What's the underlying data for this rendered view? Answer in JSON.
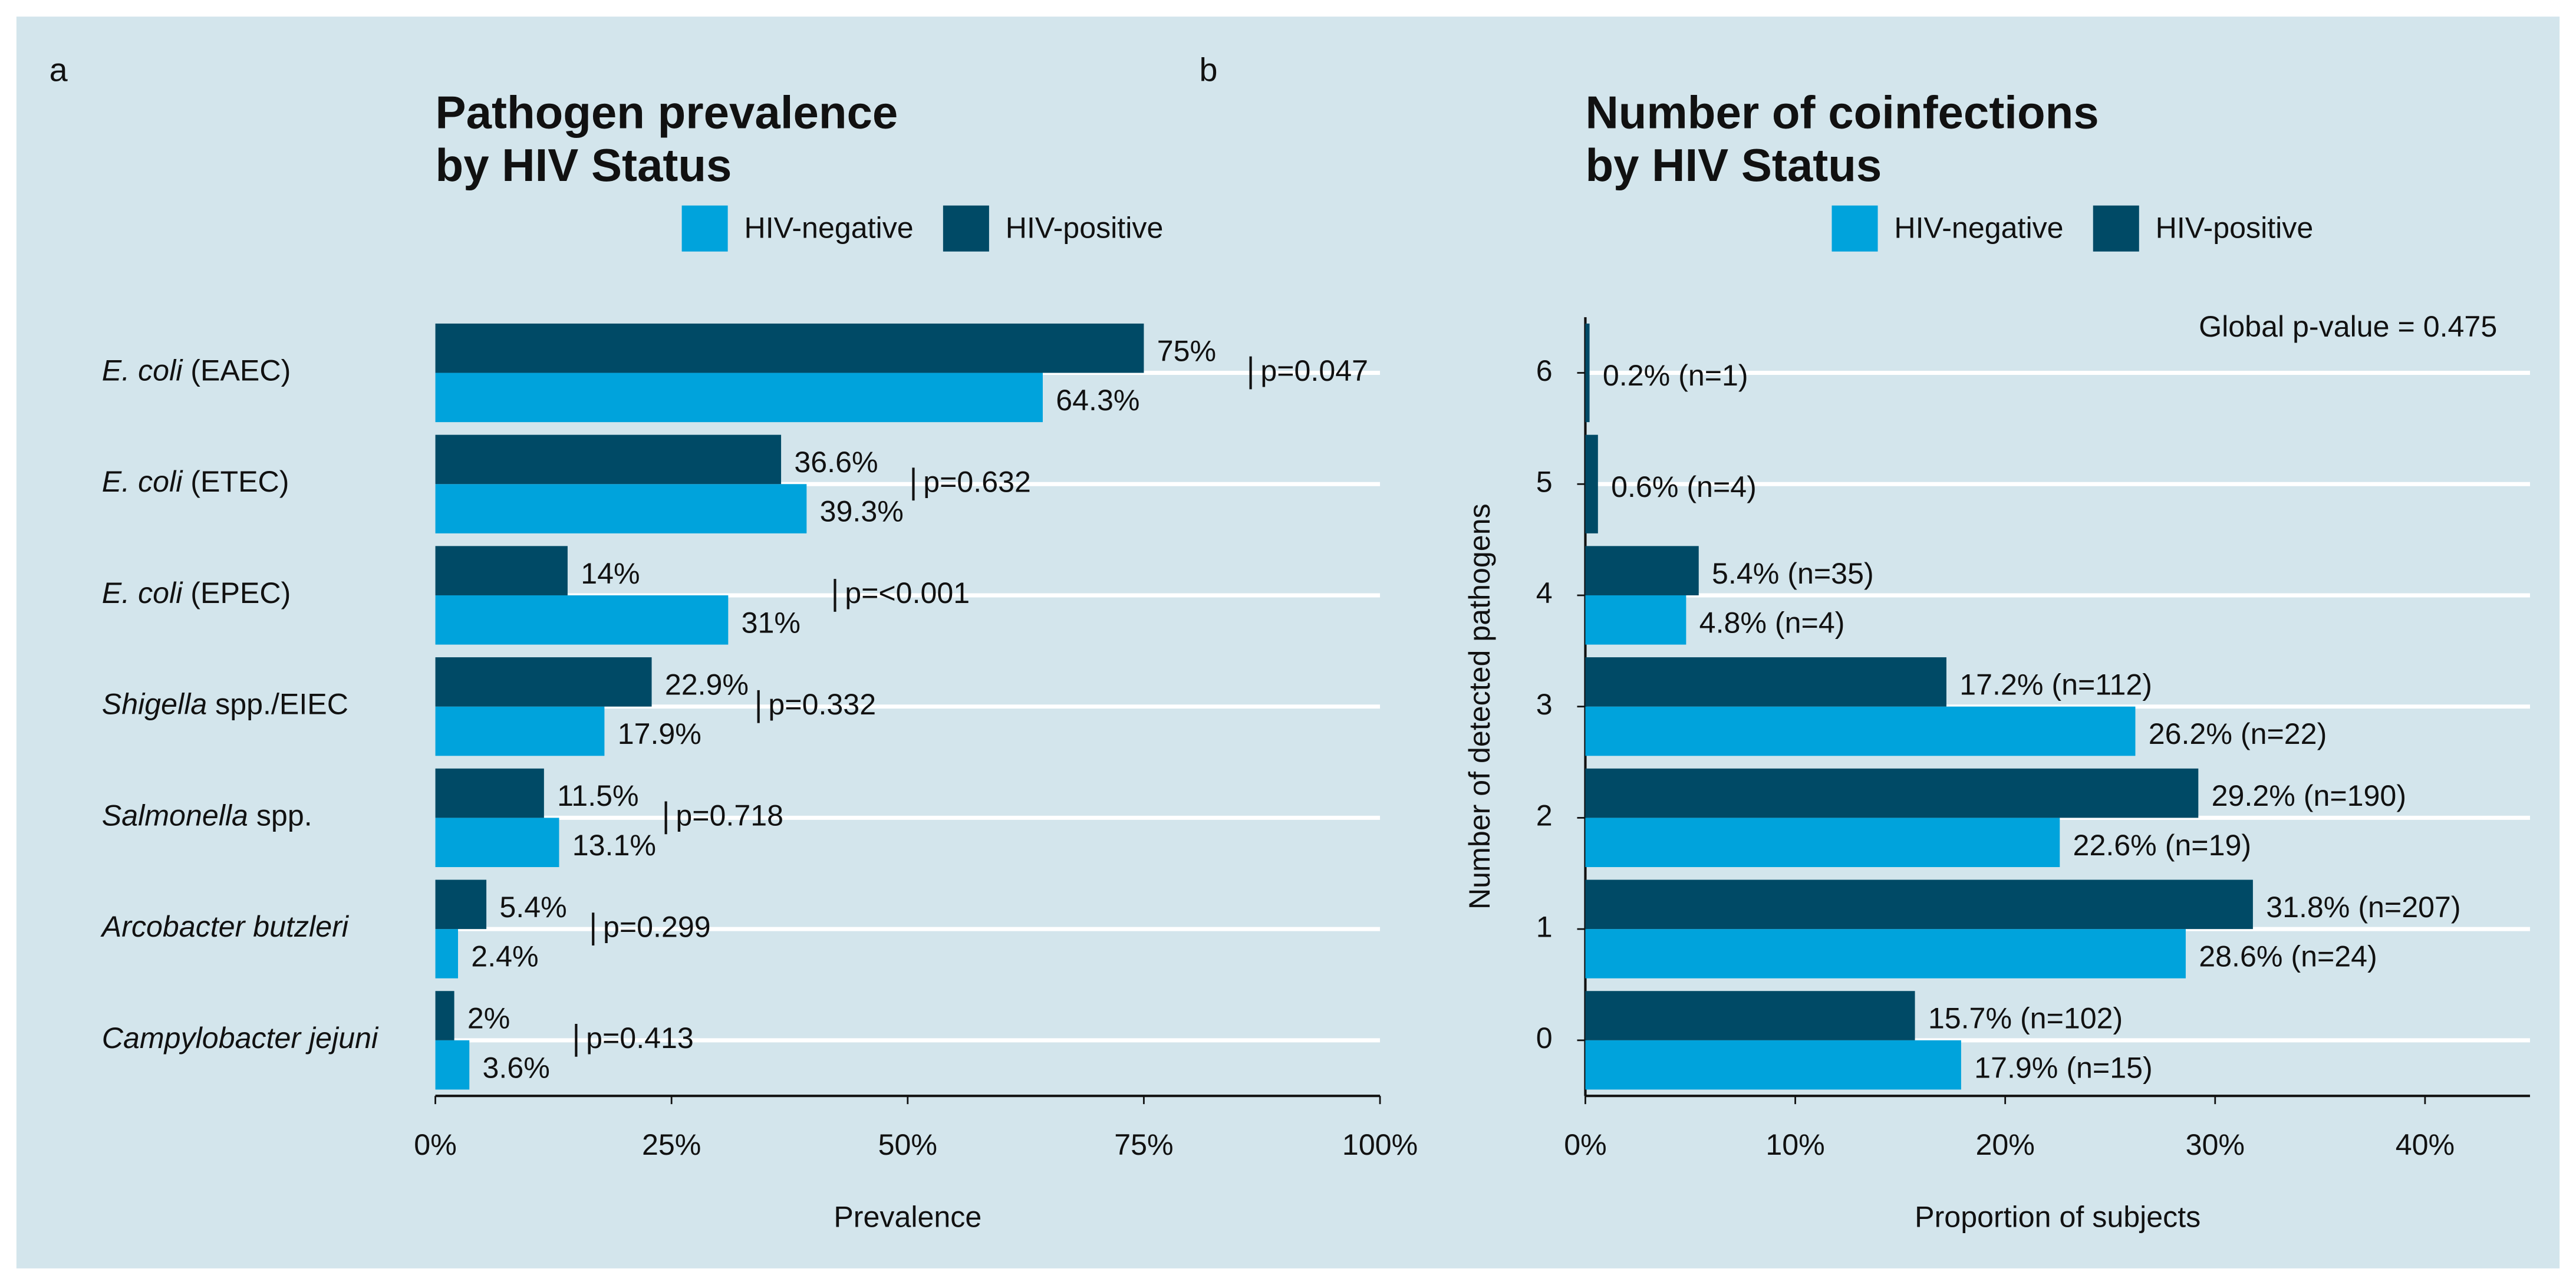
{
  "chart_data": [
    {
      "type": "bar",
      "panel_label": "a",
      "title": [
        "Pathogen prevalence",
        "by HIV Status"
      ],
      "categories": [
        {
          "italic": "E. coli",
          "rest": " (EAEC)"
        },
        {
          "italic": "E. coli",
          "rest": " (ETEC)"
        },
        {
          "italic": "E. coli",
          "rest": " (EPEC)"
        },
        {
          "italic": "Shigella",
          "rest": " spp./EIEC"
        },
        {
          "italic": "Salmonella",
          "rest": " spp."
        },
        {
          "italic": "Arcobacter butzleri"
        },
        {
          "italic": "Campylobacter jejuni"
        }
      ],
      "series": [
        {
          "name": "HIV-negative",
          "color": "#00a3dc",
          "values": [
            64.3,
            39.3,
            31,
            17.9,
            13.1,
            2.4,
            3.6
          ],
          "value_labels": [
            "64.3%",
            "39.3%",
            "31%",
            "17.9%",
            "13.1%",
            "2.4%",
            "3.6%"
          ]
        },
        {
          "name": "HIV-positive",
          "color": "#004a66",
          "values": [
            75,
            36.6,
            14,
            22.9,
            11.5,
            5.4,
            2
          ],
          "value_labels": [
            "75%",
            "36.6%",
            "14%",
            "22.9%",
            "11.5%",
            "5.4%",
            "2%"
          ]
        }
      ],
      "p_values": [
        "p=0.047",
        "p=0.632",
        "p=<0.001",
        "p=0.332",
        "p=0.718",
        "p=0.299",
        "p=0.413"
      ],
      "xlabel": "Prevalence",
      "xlim": [
        0,
        100
      ],
      "xticks": [
        {
          "value": 0,
          "label": "0%"
        },
        {
          "value": 25,
          "label": "25%"
        },
        {
          "value": 50,
          "label": "50%"
        },
        {
          "value": 75,
          "label": "75%"
        },
        {
          "value": 100,
          "label": "100%"
        }
      ],
      "grid": true
    },
    {
      "type": "bar",
      "panel_label": "b",
      "title": [
        "Number of coinfections",
        "by HIV Status"
      ],
      "categories": [
        "6",
        "5",
        "4",
        "3",
        "2",
        "1",
        "0"
      ],
      "series": [
        {
          "name": "HIV-negative",
          "color": "#00a3dc",
          "values": [
            null,
            null,
            4.8,
            26.2,
            22.6,
            28.6,
            17.9
          ],
          "value_labels": [
            null,
            null,
            "4.8% (n=4)",
            "26.2% (n=22)",
            "22.6% (n=19)",
            "28.6% (n=24)",
            "17.9% (n=15)"
          ]
        },
        {
          "name": "HIV-positive",
          "color": "#004a66",
          "values": [
            0.2,
            0.6,
            5.4,
            17.2,
            29.2,
            31.8,
            15.7
          ],
          "value_labels": [
            "0.2% (n=1)",
            "0.6% (n=4)",
            "5.4% (n=35)",
            "17.2% (n=112)",
            "29.2% (n=190)",
            "31.8% (n=207)",
            "15.7% (n=102)"
          ]
        }
      ],
      "annotation": "Global p-value = 0.475",
      "xlabel": "Proportion of subjects",
      "ylabel": "Number of detected pathogens",
      "xlim": [
        0,
        45
      ],
      "xticks": [
        {
          "value": 0,
          "label": "0%"
        },
        {
          "value": 10,
          "label": "10%"
        },
        {
          "value": 20,
          "label": "20%"
        },
        {
          "value": 30,
          "label": "30%"
        },
        {
          "value": 40,
          "label": "40%"
        }
      ],
      "grid": true
    }
  ]
}
